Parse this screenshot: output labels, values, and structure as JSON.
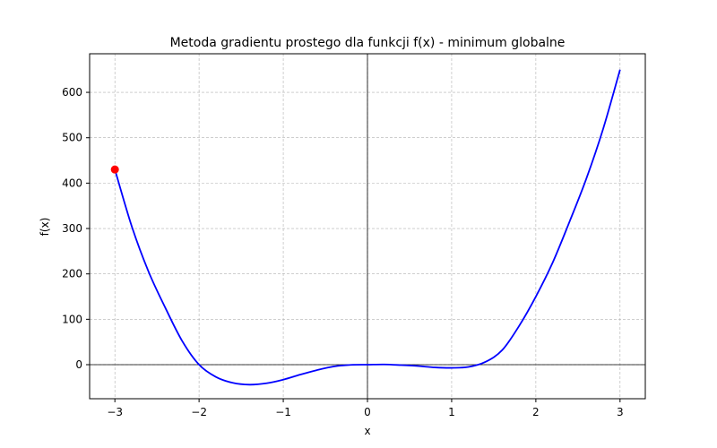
{
  "chart_data": {
    "type": "line",
    "title": "Metoda gradientu prostego dla funkcji f(x) - minimum globalne",
    "xlabel": "x",
    "ylabel": "f(x)",
    "xlim": [
      -3.3,
      3.3
    ],
    "ylim": [
      -75,
      685
    ],
    "x_ticks": [
      -3,
      -2,
      -1,
      0,
      1,
      2,
      3
    ],
    "x_tick_labels": [
      "−3",
      "−2",
      "−1",
      "0",
      "1",
      "2",
      "3"
    ],
    "y_ticks": [
      0,
      100,
      200,
      300,
      400,
      500,
      600
    ],
    "y_tick_labels": [
      "0",
      "100",
      "200",
      "300",
      "400",
      "500",
      "600"
    ],
    "grid": true,
    "series": [
      {
        "color": "#0000ff",
        "x": [
          -3.0,
          -2.8,
          -2.6,
          -2.4,
          -2.2,
          -2.0,
          -1.8,
          -1.6,
          -1.4,
          -1.2,
          -1.0,
          -0.8,
          -0.6,
          -0.4,
          -0.2,
          0.0,
          0.2,
          0.4,
          0.6,
          0.8,
          1.0,
          1.2,
          1.4,
          1.6,
          1.8,
          2.0,
          2.2,
          2.4,
          2.6,
          2.8,
          3.0
        ],
        "y": [
          430,
          305,
          205,
          125,
          52,
          0,
          -27,
          -40,
          -44,
          -41,
          -33,
          -22,
          -12,
          -4,
          -0.5,
          0,
          0.5,
          -1,
          -3,
          -6,
          -7,
          -5,
          6,
          32,
          85,
          150,
          225,
          315,
          410,
          520,
          650
        ]
      }
    ],
    "points": [
      {
        "x": -3.0,
        "y": 430,
        "color": "#ff0000"
      }
    ],
    "reference_lines": {
      "x": 0,
      "y": 0
    }
  }
}
